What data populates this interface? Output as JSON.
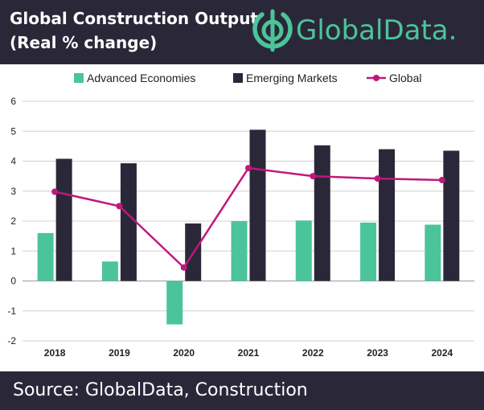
{
  "header": {
    "title_line1": "Global Construction Output",
    "title_line2": "(Real % change)",
    "logo_text": "GlobalData."
  },
  "footer": {
    "source": "Source:  GlobalData, Construction"
  },
  "colors": {
    "header_bg": "#2a2838",
    "advanced": "#4cc49a",
    "emerging": "#2a2838",
    "global": "#c0187a",
    "logo": "#4cc49a"
  },
  "chart_data": {
    "type": "bar",
    "categories": [
      "2018",
      "2019",
      "2020",
      "2021",
      "2022",
      "2023",
      "2024"
    ],
    "series": [
      {
        "name": "Advanced Economies",
        "type": "bar",
        "values": [
          1.6,
          0.65,
          -1.45,
          2.0,
          2.02,
          1.95,
          1.88
        ]
      },
      {
        "name": "Emerging Markets",
        "type": "bar",
        "values": [
          4.08,
          3.93,
          1.92,
          5.05,
          4.53,
          4.4,
          4.35
        ]
      },
      {
        "name": "Global",
        "type": "line",
        "values": [
          2.98,
          2.5,
          0.45,
          3.77,
          3.5,
          3.42,
          3.37
        ]
      }
    ],
    "ylim": [
      -2,
      6
    ],
    "yticks": [
      -2,
      -1,
      0,
      1,
      2,
      3,
      4,
      5,
      6
    ],
    "grid": true,
    "legend_position": "top"
  }
}
